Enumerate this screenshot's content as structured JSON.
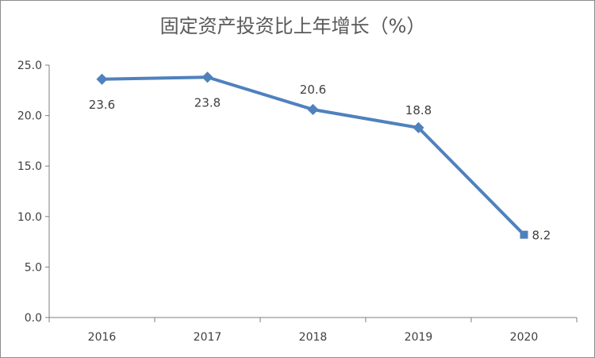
{
  "chart_data": {
    "type": "line",
    "title": "固定资产投资比上年增长（%）",
    "categories": [
      "2016",
      "2017",
      "2018",
      "2019",
      "2020"
    ],
    "series": [
      {
        "values": [
          23.6,
          23.8,
          20.6,
          18.8,
          8.2
        ]
      }
    ],
    "data_labels": [
      "23.6",
      "23.8",
      "20.6",
      "18.8",
      "8.2"
    ],
    "y_ticks": [
      "0.0",
      "5.0",
      "10.0",
      "15.0",
      "20.0",
      "25.0"
    ],
    "ylim": [
      0,
      25
    ],
    "grid": false,
    "line_color": "#4f81bd"
  }
}
